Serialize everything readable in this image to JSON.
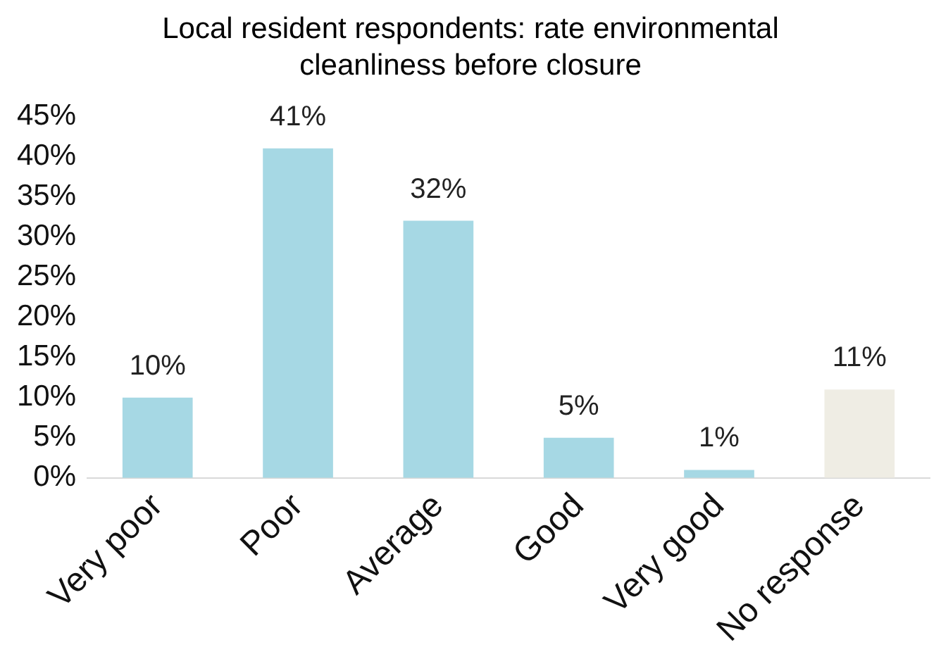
{
  "chart_data": {
    "type": "bar",
    "title": "Local resident respondents: rate environmental cleanliness before closure",
    "categories": [
      "Very poor",
      "Poor",
      "Average",
      "Good",
      "Very good",
      "No response"
    ],
    "values": [
      10,
      41,
      32,
      5,
      1,
      11
    ],
    "colors": [
      "#a6d8e4",
      "#a6d8e4",
      "#a6d8e4",
      "#a6d8e4",
      "#a6d8e4",
      "#efede4"
    ],
    "value_labels": [
      "10%",
      "41%",
      "32%",
      "5%",
      "1%",
      "11%"
    ],
    "ylim": [
      0,
      45
    ],
    "yticks": [
      {
        "value": 0,
        "label": "0%"
      },
      {
        "value": 5,
        "label": "5%"
      },
      {
        "value": 10,
        "label": "10%"
      },
      {
        "value": 15,
        "label": "15%"
      },
      {
        "value": 20,
        "label": "20%"
      },
      {
        "value": 25,
        "label": "25%"
      },
      {
        "value": 30,
        "label": "30%"
      },
      {
        "value": 35,
        "label": "35%"
      },
      {
        "value": 40,
        "label": "40%"
      },
      {
        "value": 45,
        "label": "45%"
      }
    ],
    "grid": false,
    "legend": false
  }
}
